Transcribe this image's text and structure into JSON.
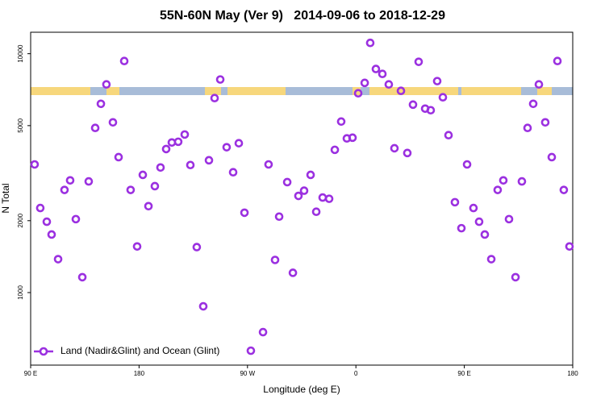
{
  "chart_data": {
    "type": "scatter",
    "title": "55N-60N May (Ver 9)   2014-09-06 to 2018-12-29",
    "xlabel": "Longitude (deg E)",
    "ylabel": "N Total",
    "log_y": true,
    "legend": "bottom-left",
    "xlim": [
      90,
      540
    ],
    "xticks": [
      {
        "value": 90,
        "label": "90 E"
      },
      {
        "value": 180,
        "label": "180"
      },
      {
        "value": 270,
        "label": "90 W"
      },
      {
        "value": 360,
        "label": "0"
      },
      {
        "value": 450,
        "label": "90 E"
      },
      {
        "value": 540,
        "label": "180"
      }
    ],
    "ylim": [
      497,
      12300
    ],
    "yticks": [
      1000,
      2000,
      5000,
      10000
    ],
    "series": [
      {
        "name": "Land (Nadir&Glint) and Ocean (Glint)",
        "color": "#9b30e0",
        "x": [
          93.3,
          98,
          103.4,
          107.4,
          112.8,
          118.1,
          122.8,
          127.5,
          132.9,
          138.2,
          143.6,
          148.3,
          152.9,
          158.3,
          163,
          167.7,
          173,
          178.4,
          183.1,
          187.8,
          193.1,
          197.8,
          202.5,
          207.2,
          212.5,
          217.9,
          222.6,
          227.9,
          233.3,
          238,
          242.7,
          247.4,
          252.7,
          258.1,
          262.8,
          267.5,
          272.8,
          282.9,
          287.5,
          292.9,
          296.3,
          303,
          307.7,
          312.3,
          317,
          322.4,
          327.1,
          332.4,
          337.8,
          342.5,
          347.8,
          352.5,
          357.2,
          361.9,
          367.3,
          371.9,
          376.6,
          382,
          387.3,
          392,
          397.4,
          402.7,
          407.4,
          412.1,
          417.5,
          422.1,
          427.5,
          432.2,
          436.9,
          442.2,
          447.6,
          452.3,
          457.6,
          462.3,
          467,
          472.4,
          477.7,
          482.4,
          487.1,
          492.5,
          497.8,
          502.5,
          507.2,
          511.9,
          517.2,
          522.6,
          527.3,
          532.6,
          537.3
        ],
        "values": [
          3440,
          2260,
          1980,
          1750,
          1380,
          2690,
          2950,
          2030,
          1160,
          2920,
          4890,
          6170,
          7440,
          5160,
          3690,
          9320,
          2690,
          1560,
          3110,
          2300,
          2790,
          3340,
          3990,
          4250,
          4280,
          4590,
          3420,
          1550,
          876,
          3580,
          6520,
          7800,
          4060,
          3190,
          4220,
          2160,
          571,
          683,
          3440,
          1370,
          2080,
          2900,
          1210,
          2540,
          2670,
          3110,
          2180,
          2500,
          2470,
          3960,
          5200,
          4420,
          4450,
          6830,
          7550,
          11100,
          8630,
          8230,
          7440,
          4020,
          6990,
          3840,
          6120,
          9250,
          5890,
          5800,
          7680,
          6570,
          4560,
          2390,
          1860,
          3440,
          2260,
          1980,
          1750,
          1380,
          2690,
          2950,
          2030,
          1160,
          2920,
          4890,
          6170,
          7440,
          5160,
          3690,
          9320,
          2690,
          1560
        ]
      }
    ]
  }
}
